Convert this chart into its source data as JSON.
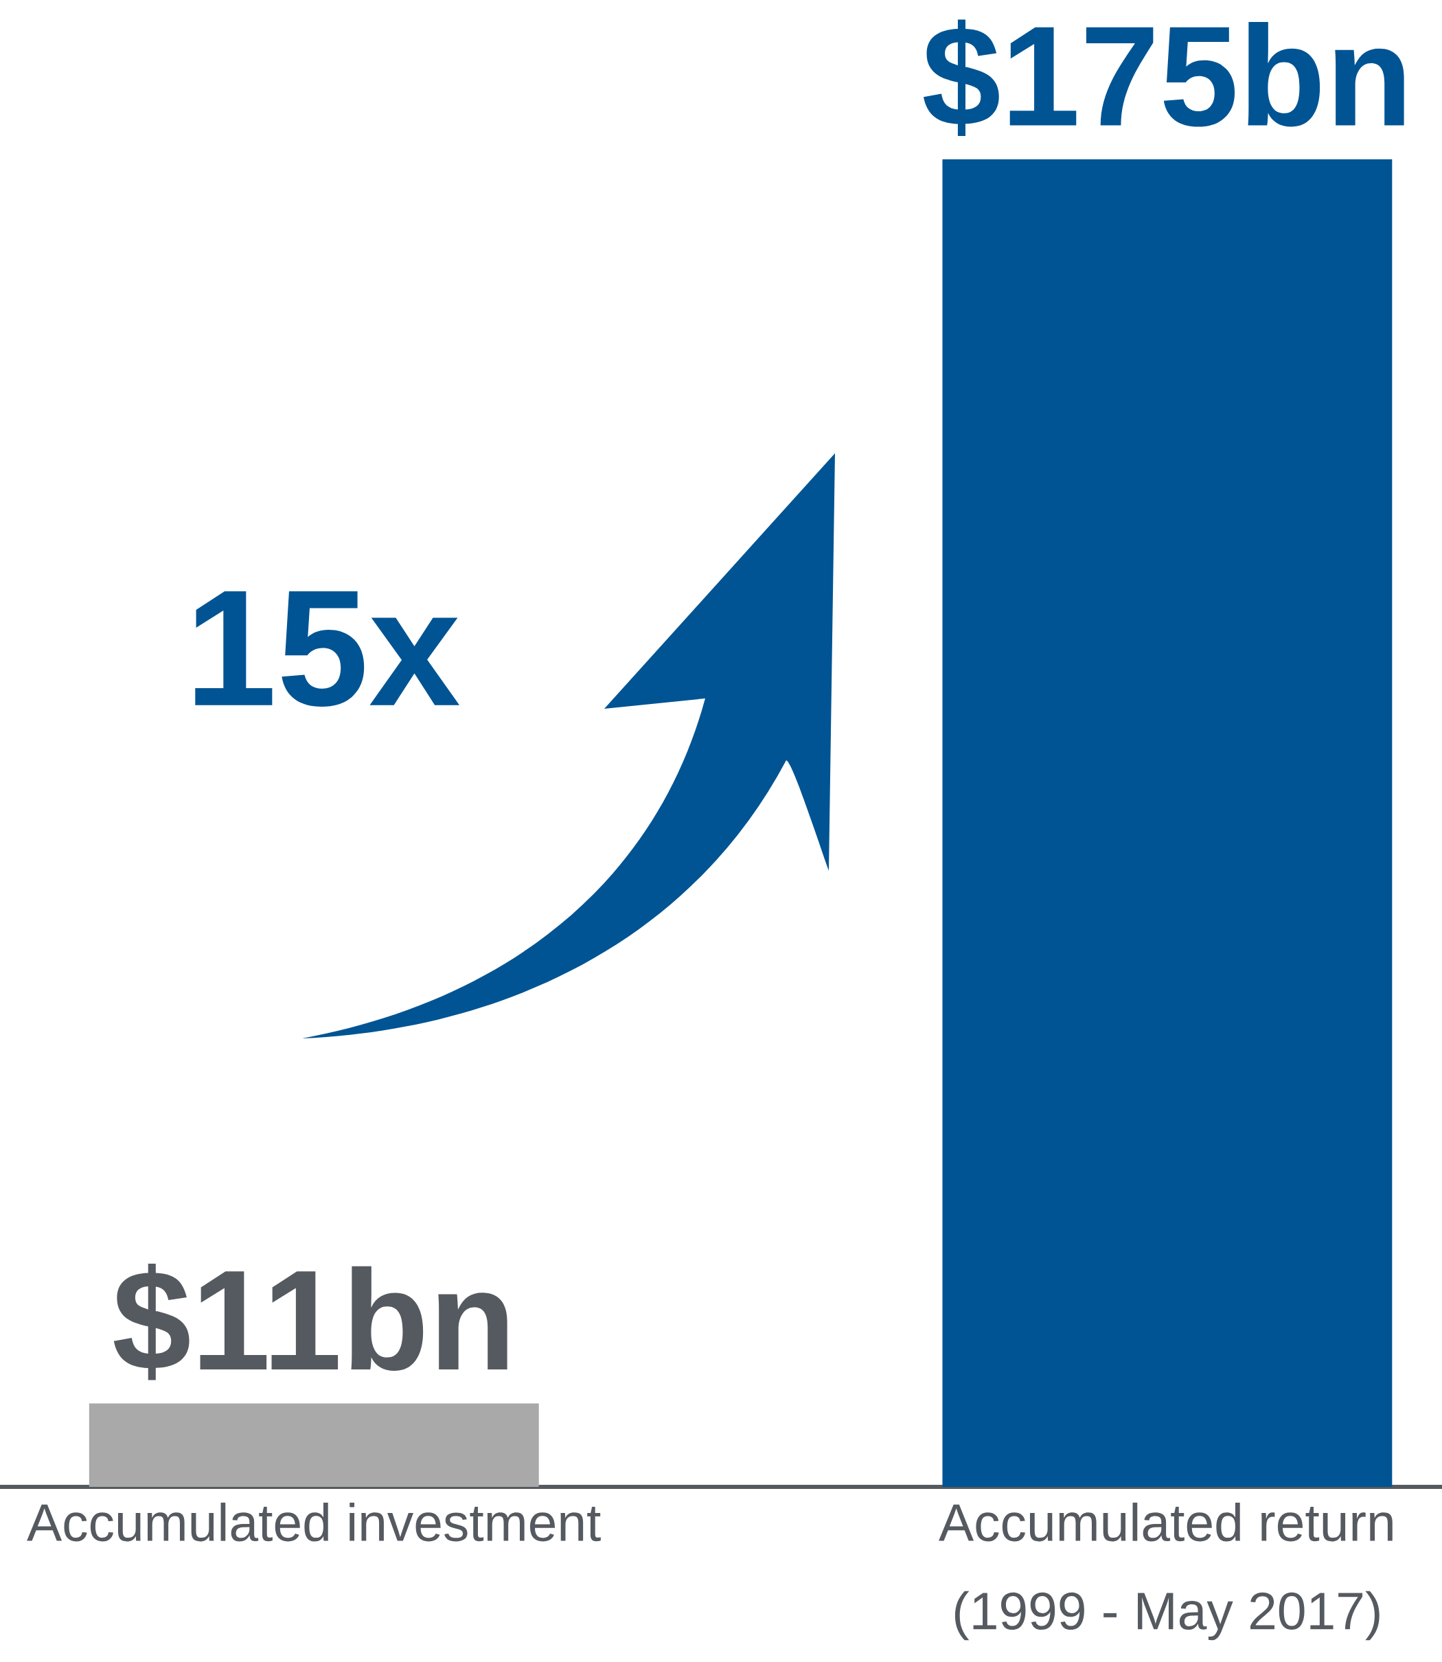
{
  "chart_data": {
    "type": "bar",
    "categories": [
      "Accumulated investment",
      "Accumulated return (1999 - May 2017)"
    ],
    "values": [
      11,
      175
    ],
    "colors": [
      "#a8a9a8",
      "#005493"
    ],
    "value_labels": [
      "$11bn",
      "$175bn"
    ],
    "annotations": [
      "15x"
    ]
  }
}
